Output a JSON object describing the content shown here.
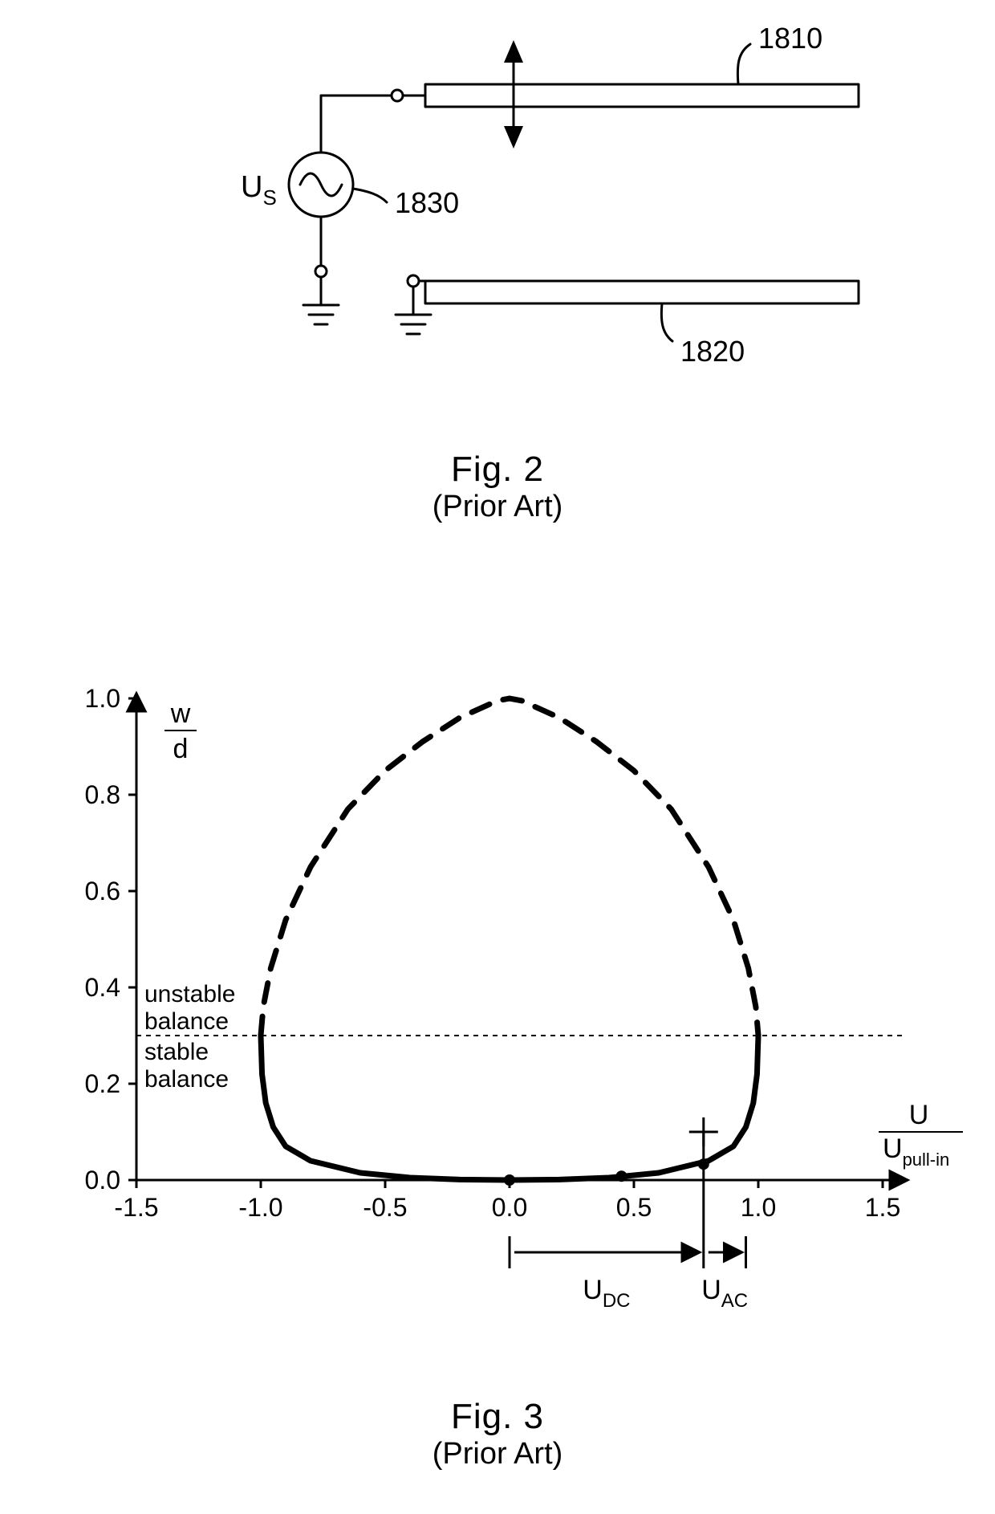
{
  "colors": {
    "stroke": "#000000",
    "bg": "#ffffff"
  },
  "fig2": {
    "caption": "Fig. 2",
    "subcaption": "(Prior Art)",
    "source_label": "U",
    "source_sub": "S",
    "ref_top": "1810",
    "ref_bottom": "1820",
    "ref_source": "1830"
  },
  "fig3": {
    "caption": "Fig. 3",
    "subcaption": "(Prior Art)",
    "y_label_top": "w",
    "y_label_bot": "d",
    "x_label_top": "U",
    "x_label_bot_prefix": "U",
    "x_label_bot_sub": "pull-in",
    "unstable_text": "unstable",
    "balance_text": "balance",
    "stable_text": "stable",
    "udc_prefix": "U",
    "udc_sub": "DC",
    "uac_prefix": "U",
    "uac_sub": "AC",
    "x_ticks": [
      "-1.5",
      "-1.0",
      "-0.5",
      "0.0",
      "0.5",
      "1.0",
      "1.5"
    ],
    "y_ticks": [
      "0.0",
      "0.2",
      "0.4",
      "0.6",
      "0.8",
      "1.0"
    ],
    "chart": {
      "xlim": [
        -1.5,
        1.5
      ],
      "ylim": [
        0.0,
        1.0
      ],
      "balance_line_y": 0.3,
      "curve_stable": [
        [
          -1.0,
          0.3
        ],
        [
          -0.995,
          0.22
        ],
        [
          -0.98,
          0.16
        ],
        [
          -0.95,
          0.11
        ],
        [
          -0.9,
          0.07
        ],
        [
          -0.8,
          0.04
        ],
        [
          -0.6,
          0.015
        ],
        [
          -0.4,
          0.005
        ],
        [
          -0.2,
          0.001
        ],
        [
          0.0,
          0.0
        ],
        [
          0.2,
          0.001
        ],
        [
          0.4,
          0.005
        ],
        [
          0.6,
          0.015
        ],
        [
          0.8,
          0.04
        ],
        [
          0.9,
          0.07
        ],
        [
          0.95,
          0.11
        ],
        [
          0.98,
          0.16
        ],
        [
          0.995,
          0.22
        ],
        [
          1.0,
          0.3
        ]
      ],
      "curve_unstable": [
        [
          -1.0,
          0.3
        ],
        [
          -0.99,
          0.36
        ],
        [
          -0.96,
          0.44
        ],
        [
          -0.9,
          0.54
        ],
        [
          -0.8,
          0.65
        ],
        [
          -0.65,
          0.77
        ],
        [
          -0.5,
          0.85
        ],
        [
          -0.35,
          0.91
        ],
        [
          -0.2,
          0.96
        ],
        [
          -0.05,
          0.995
        ],
        [
          0.0,
          1.0
        ],
        [
          0.05,
          0.995
        ],
        [
          0.2,
          0.96
        ],
        [
          0.35,
          0.91
        ],
        [
          0.5,
          0.85
        ],
        [
          0.65,
          0.77
        ],
        [
          0.8,
          0.65
        ],
        [
          0.9,
          0.54
        ],
        [
          0.96,
          0.44
        ],
        [
          0.99,
          0.36
        ],
        [
          1.0,
          0.3
        ]
      ],
      "points": [
        {
          "x": 0.0,
          "y": 0.0
        },
        {
          "x": 0.45,
          "y": 0.008
        },
        {
          "x": 0.78,
          "y": 0.033
        }
      ],
      "udc_x_from": 0.0,
      "udc_x_to": 0.78,
      "uac_x_from": 0.78,
      "uac_x_to": 0.95,
      "cross_y": 0.1,
      "stroke_width_axis": 3,
      "stroke_width_curve_solid": 7,
      "stroke_width_curve_dashed": 7,
      "dash_pattern": "24 18",
      "balance_dash": "6 6",
      "point_radius": 7,
      "tick_fontsize": 32,
      "label_fontsize": 34,
      "annot_fontsize": 30
    }
  }
}
